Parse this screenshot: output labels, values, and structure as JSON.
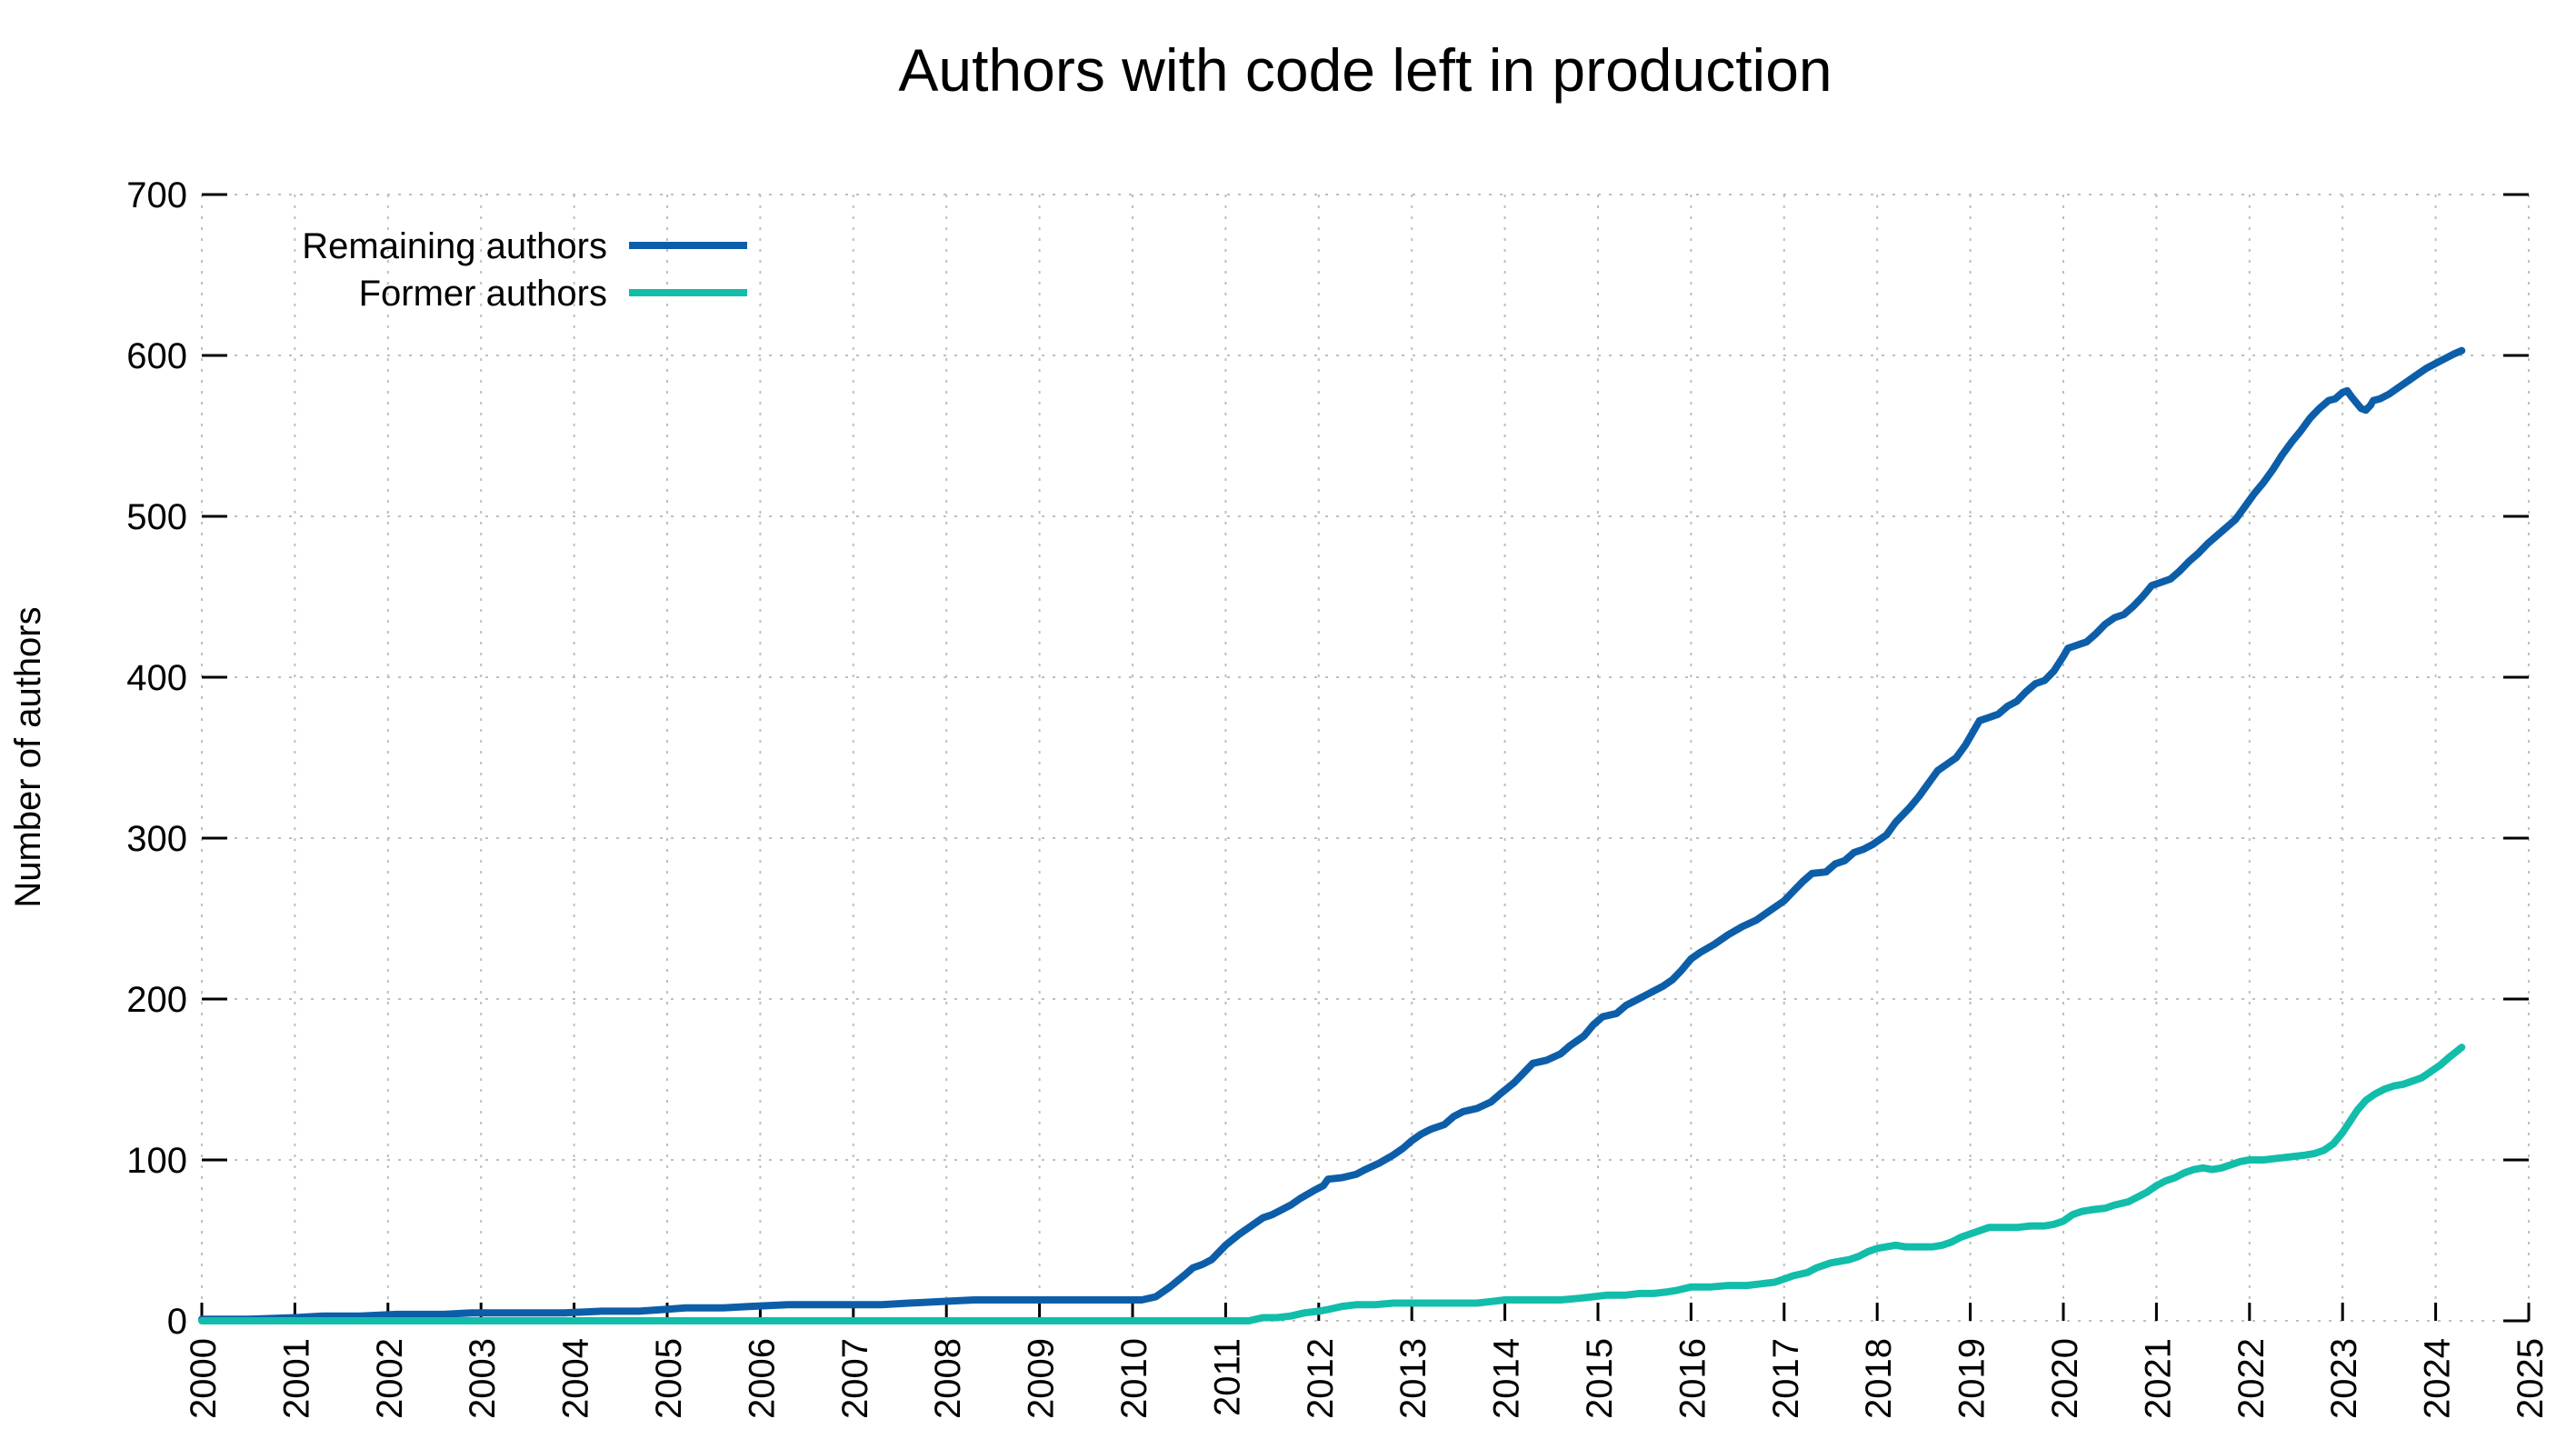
{
  "chart_data": {
    "type": "line",
    "title": "Authors with code left in production",
    "xlabel": "",
    "ylabel": "Number of authors",
    "xlim": [
      2000,
      2025
    ],
    "ylim": [
      0,
      700
    ],
    "x_ticks": [
      2000,
      2001,
      2002,
      2003,
      2004,
      2005,
      2006,
      2007,
      2008,
      2009,
      2010,
      2011,
      2012,
      2013,
      2014,
      2015,
      2016,
      2017,
      2018,
      2019,
      2020,
      2021,
      2022,
      2023,
      2024,
      2025
    ],
    "y_ticks": [
      0,
      100,
      200,
      300,
      400,
      500,
      600,
      700
    ],
    "grid": true,
    "grid_color": "#bfbfbf",
    "legend_position": "top-left-inside",
    "series": [
      {
        "name": "Remaining authors",
        "color": "#0d5ea9",
        "points": [
          [
            2000.0,
            1
          ],
          [
            2000.5,
            1
          ],
          [
            2001.0,
            2
          ],
          [
            2001.3,
            3
          ],
          [
            2001.7,
            3
          ],
          [
            2002.1,
            4
          ],
          [
            2002.6,
            4
          ],
          [
            2002.9,
            5
          ],
          [
            2003.4,
            5
          ],
          [
            2003.9,
            5
          ],
          [
            2004.3,
            6
          ],
          [
            2004.7,
            6
          ],
          [
            2004.95,
            7
          ],
          [
            2005.2,
            8
          ],
          [
            2005.6,
            8
          ],
          [
            2005.9,
            9
          ],
          [
            2006.3,
            10
          ],
          [
            2006.9,
            10
          ],
          [
            2007.3,
            10
          ],
          [
            2007.6,
            11
          ],
          [
            2007.95,
            12
          ],
          [
            2008.3,
            13
          ],
          [
            2008.8,
            13
          ],
          [
            2009.3,
            13
          ],
          [
            2009.8,
            13
          ],
          [
            2010.1,
            13
          ],
          [
            2010.25,
            15
          ],
          [
            2010.4,
            21
          ],
          [
            2010.55,
            28
          ],
          [
            2010.65,
            33
          ],
          [
            2010.75,
            35
          ],
          [
            2010.85,
            38
          ],
          [
            2011.0,
            47
          ],
          [
            2011.15,
            54
          ],
          [
            2011.3,
            60
          ],
          [
            2011.4,
            64
          ],
          [
            2011.5,
            66
          ],
          [
            2011.6,
            69
          ],
          [
            2011.7,
            72
          ],
          [
            2011.8,
            76
          ],
          [
            2011.95,
            81
          ],
          [
            2012.05,
            84
          ],
          [
            2012.1,
            88
          ],
          [
            2012.25,
            89
          ],
          [
            2012.4,
            91
          ],
          [
            2012.5,
            94
          ],
          [
            2012.65,
            98
          ],
          [
            2012.8,
            103
          ],
          [
            2012.9,
            107
          ],
          [
            2013.0,
            112
          ],
          [
            2013.1,
            116
          ],
          [
            2013.2,
            119
          ],
          [
            2013.35,
            122
          ],
          [
            2013.45,
            127
          ],
          [
            2013.55,
            130
          ],
          [
            2013.7,
            132
          ],
          [
            2013.85,
            136
          ],
          [
            2013.95,
            141
          ],
          [
            2014.1,
            148
          ],
          [
            2014.2,
            154
          ],
          [
            2014.3,
            160
          ],
          [
            2014.45,
            162
          ],
          [
            2014.6,
            166
          ],
          [
            2014.7,
            171
          ],
          [
            2014.85,
            177
          ],
          [
            2014.95,
            184
          ],
          [
            2015.05,
            189
          ],
          [
            2015.2,
            191
          ],
          [
            2015.3,
            196
          ],
          [
            2015.4,
            199
          ],
          [
            2015.5,
            202
          ],
          [
            2015.6,
            205
          ],
          [
            2015.7,
            208
          ],
          [
            2015.8,
            212
          ],
          [
            2015.9,
            218
          ],
          [
            2016.0,
            225
          ],
          [
            2016.1,
            229
          ],
          [
            2016.25,
            234
          ],
          [
            2016.4,
            240
          ],
          [
            2016.55,
            245
          ],
          [
            2016.7,
            249
          ],
          [
            2016.85,
            255
          ],
          [
            2017.0,
            261
          ],
          [
            2017.1,
            267
          ],
          [
            2017.2,
            273
          ],
          [
            2017.3,
            278
          ],
          [
            2017.45,
            279
          ],
          [
            2017.55,
            284
          ],
          [
            2017.65,
            286
          ],
          [
            2017.75,
            291
          ],
          [
            2017.85,
            293
          ],
          [
            2017.95,
            296
          ],
          [
            2018.0,
            298
          ],
          [
            2018.1,
            302
          ],
          [
            2018.2,
            310
          ],
          [
            2018.35,
            319
          ],
          [
            2018.45,
            326
          ],
          [
            2018.55,
            334
          ],
          [
            2018.65,
            342
          ],
          [
            2018.75,
            346
          ],
          [
            2018.85,
            350
          ],
          [
            2018.95,
            358
          ],
          [
            2019.05,
            368
          ],
          [
            2019.1,
            373
          ],
          [
            2019.2,
            375
          ],
          [
            2019.3,
            377
          ],
          [
            2019.4,
            382
          ],
          [
            2019.5,
            385
          ],
          [
            2019.6,
            391
          ],
          [
            2019.7,
            396
          ],
          [
            2019.8,
            398
          ],
          [
            2019.9,
            404
          ],
          [
            2020.0,
            413
          ],
          [
            2020.05,
            418
          ],
          [
            2020.15,
            420
          ],
          [
            2020.25,
            422
          ],
          [
            2020.35,
            427
          ],
          [
            2020.45,
            433
          ],
          [
            2020.55,
            437
          ],
          [
            2020.65,
            439
          ],
          [
            2020.75,
            444
          ],
          [
            2020.85,
            450
          ],
          [
            2020.95,
            457
          ],
          [
            2021.05,
            459
          ],
          [
            2021.15,
            461
          ],
          [
            2021.25,
            466
          ],
          [
            2021.35,
            472
          ],
          [
            2021.45,
            477
          ],
          [
            2021.55,
            483
          ],
          [
            2021.65,
            488
          ],
          [
            2021.75,
            493
          ],
          [
            2021.85,
            498
          ],
          [
            2021.95,
            506
          ],
          [
            2022.05,
            514
          ],
          [
            2022.15,
            521
          ],
          [
            2022.25,
            529
          ],
          [
            2022.35,
            538
          ],
          [
            2022.45,
            546
          ],
          [
            2022.55,
            553
          ],
          [
            2022.65,
            561
          ],
          [
            2022.75,
            567
          ],
          [
            2022.85,
            572
          ],
          [
            2022.92,
            573
          ],
          [
            2023.0,
            577
          ],
          [
            2023.05,
            578
          ],
          [
            2023.1,
            574
          ],
          [
            2023.2,
            567
          ],
          [
            2023.25,
            566
          ],
          [
            2023.3,
            569
          ],
          [
            2023.33,
            572
          ],
          [
            2023.4,
            573
          ],
          [
            2023.5,
            576
          ],
          [
            2023.6,
            580
          ],
          [
            2023.7,
            584
          ],
          [
            2023.8,
            588
          ],
          [
            2023.9,
            592
          ],
          [
            2024.0,
            595
          ],
          [
            2024.1,
            598
          ],
          [
            2024.2,
            601
          ],
          [
            2024.28,
            603
          ]
        ]
      },
      {
        "name": "Former authors",
        "color": "#12bdaa",
        "points": [
          [
            2000.0,
            0
          ],
          [
            2002.0,
            0
          ],
          [
            2004.0,
            0
          ],
          [
            2006.0,
            0
          ],
          [
            2008.0,
            0
          ],
          [
            2010.0,
            0
          ],
          [
            2010.8,
            0
          ],
          [
            2011.25,
            0
          ],
          [
            2011.4,
            2
          ],
          [
            2011.55,
            2
          ],
          [
            2011.7,
            3
          ],
          [
            2011.85,
            5
          ],
          [
            2012.0,
            6
          ],
          [
            2012.1,
            7
          ],
          [
            2012.25,
            9
          ],
          [
            2012.4,
            10
          ],
          [
            2012.6,
            10
          ],
          [
            2012.8,
            11
          ],
          [
            2013.1,
            11
          ],
          [
            2013.4,
            11
          ],
          [
            2013.7,
            11
          ],
          [
            2013.85,
            12
          ],
          [
            2014.0,
            13
          ],
          [
            2014.3,
            13
          ],
          [
            2014.6,
            13
          ],
          [
            2014.8,
            14
          ],
          [
            2014.95,
            15
          ],
          [
            2015.1,
            16
          ],
          [
            2015.3,
            16
          ],
          [
            2015.45,
            17
          ],
          [
            2015.6,
            17
          ],
          [
            2015.75,
            18
          ],
          [
            2015.85,
            19
          ],
          [
            2016.0,
            21
          ],
          [
            2016.2,
            21
          ],
          [
            2016.4,
            22
          ],
          [
            2016.6,
            22
          ],
          [
            2016.75,
            23
          ],
          [
            2016.9,
            24
          ],
          [
            2017.0,
            26
          ],
          [
            2017.1,
            28
          ],
          [
            2017.25,
            30
          ],
          [
            2017.35,
            33
          ],
          [
            2017.5,
            36
          ],
          [
            2017.6,
            37
          ],
          [
            2017.7,
            38
          ],
          [
            2017.8,
            40
          ],
          [
            2017.9,
            43
          ],
          [
            2018.0,
            45
          ],
          [
            2018.1,
            46
          ],
          [
            2018.2,
            47
          ],
          [
            2018.3,
            46
          ],
          [
            2018.45,
            46
          ],
          [
            2018.6,
            46
          ],
          [
            2018.7,
            47
          ],
          [
            2018.8,
            49
          ],
          [
            2018.9,
            52
          ],
          [
            2019.0,
            54
          ],
          [
            2019.1,
            56
          ],
          [
            2019.2,
            58
          ],
          [
            2019.35,
            58
          ],
          [
            2019.5,
            58
          ],
          [
            2019.65,
            59
          ],
          [
            2019.8,
            59
          ],
          [
            2019.9,
            60
          ],
          [
            2020.0,
            62
          ],
          [
            2020.1,
            66
          ],
          [
            2020.2,
            68
          ],
          [
            2020.3,
            69
          ],
          [
            2020.45,
            70
          ],
          [
            2020.55,
            72
          ],
          [
            2020.7,
            74
          ],
          [
            2020.8,
            77
          ],
          [
            2020.9,
            80
          ],
          [
            2021.0,
            84
          ],
          [
            2021.1,
            87
          ],
          [
            2021.2,
            89
          ],
          [
            2021.3,
            92
          ],
          [
            2021.4,
            94
          ],
          [
            2021.5,
            95
          ],
          [
            2021.6,
            94
          ],
          [
            2021.7,
            95
          ],
          [
            2021.8,
            97
          ],
          [
            2021.9,
            99
          ],
          [
            2022.0,
            100
          ],
          [
            2022.15,
            100
          ],
          [
            2022.3,
            101
          ],
          [
            2022.45,
            102
          ],
          [
            2022.6,
            103
          ],
          [
            2022.7,
            104
          ],
          [
            2022.8,
            106
          ],
          [
            2022.9,
            110
          ],
          [
            2023.0,
            117
          ],
          [
            2023.08,
            124
          ],
          [
            2023.16,
            131
          ],
          [
            2023.25,
            137
          ],
          [
            2023.35,
            141
          ],
          [
            2023.45,
            144
          ],
          [
            2023.55,
            146
          ],
          [
            2023.65,
            147
          ],
          [
            2023.75,
            149
          ],
          [
            2023.85,
            151
          ],
          [
            2023.95,
            155
          ],
          [
            2024.05,
            159
          ],
          [
            2024.15,
            164
          ],
          [
            2024.28,
            170
          ]
        ]
      }
    ]
  }
}
